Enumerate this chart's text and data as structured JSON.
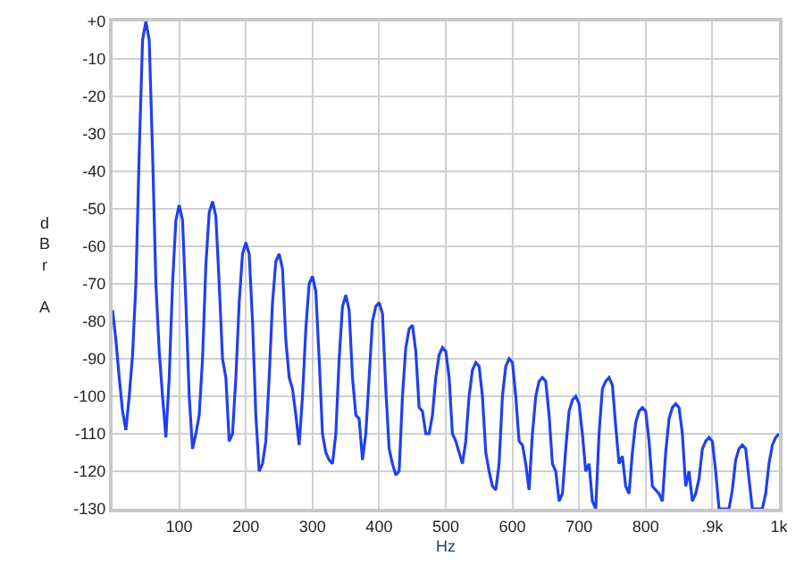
{
  "chart_data": {
    "type": "line",
    "xlabel": "Hz",
    "ylabel": "dBr A",
    "x": [
      0,
      5,
      10,
      15,
      20,
      25,
      30,
      35,
      40,
      45,
      50,
      55,
      60,
      65,
      70,
      75,
      80,
      85,
      90,
      95,
      100,
      105,
      110,
      115,
      120,
      125,
      130,
      135,
      140,
      145,
      150,
      155,
      160,
      165,
      170,
      175,
      180,
      185,
      190,
      195,
      200,
      205,
      210,
      215,
      220,
      225,
      230,
      235,
      240,
      245,
      250,
      255,
      260,
      265,
      270,
      275,
      280,
      285,
      290,
      295,
      300,
      305,
      310,
      315,
      320,
      325,
      330,
      335,
      340,
      345,
      350,
      355,
      360,
      365,
      370,
      375,
      380,
      385,
      390,
      395,
      400,
      405,
      410,
      415,
      420,
      425,
      430,
      435,
      440,
      445,
      450,
      455,
      460,
      465,
      470,
      475,
      480,
      485,
      490,
      495,
      500,
      505,
      510,
      515,
      520,
      525,
      530,
      535,
      540,
      545,
      550,
      555,
      560,
      565,
      570,
      575,
      580,
      585,
      590,
      595,
      600,
      605,
      610,
      615,
      620,
      625,
      630,
      635,
      640,
      645,
      650,
      655,
      660,
      665,
      670,
      675,
      680,
      685,
      690,
      695,
      700,
      705,
      710,
      715,
      720,
      725,
      730,
      735,
      740,
      745,
      750,
      755,
      760,
      765,
      770,
      775,
      780,
      785,
      790,
      795,
      800,
      805,
      810,
      815,
      820,
      825,
      830,
      835,
      840,
      845,
      850,
      855,
      860,
      865,
      870,
      875,
      880,
      885,
      890,
      895,
      900,
      905,
      910,
      915,
      920,
      925,
      930,
      935,
      940,
      945,
      950,
      955,
      960,
      965,
      970,
      975,
      980,
      985,
      990,
      995,
      1000
    ],
    "series": [
      {
        "color": "#2040f0",
        "values": [
          -77,
          -85,
          -95,
          -104,
          -109,
          -100,
          -89,
          -70,
          -35,
          -5,
          0,
          -5,
          -35,
          -70,
          -88,
          -100,
          -111,
          -95,
          -70,
          -53,
          -49,
          -53,
          -75,
          -100,
          -114,
          -110,
          -105,
          -90,
          -65,
          -51,
          -48,
          -52,
          -70,
          -90,
          -95,
          -112,
          -110,
          -95,
          -75,
          -62,
          -59,
          -62,
          -80,
          -105,
          -120,
          -118,
          -112,
          -95,
          -75,
          -64,
          -62,
          -66,
          -85,
          -95,
          -98,
          -105,
          -113,
          -100,
          -82,
          -70,
          -68,
          -72,
          -90,
          -110,
          -115,
          -117,
          -118,
          -110,
          -90,
          -76,
          -73,
          -77,
          -95,
          -105,
          -106,
          -117,
          -110,
          -95,
          -80,
          -76,
          -75,
          -78,
          -98,
          -114,
          -118,
          -121,
          -120,
          -100,
          -87,
          -82,
          -81,
          -88,
          -103,
          -104,
          -110,
          -110,
          -105,
          -95,
          -89,
          -87,
          -88,
          -95,
          -110,
          -112,
          -115,
          -118,
          -112,
          -100,
          -93,
          -91,
          -92,
          -100,
          -115,
          -120,
          -124,
          -125,
          -118,
          -100,
          -92,
          -90,
          -91,
          -100,
          -112,
          -113,
          -118,
          -125,
          -110,
          -100,
          -96,
          -95,
          -96,
          -105,
          -118,
          -120,
          -128,
          -126,
          -114,
          -104,
          -101,
          -100,
          -102,
          -110,
          -120,
          -118,
          -128,
          -130,
          -110,
          -98,
          -96,
          -95,
          -97,
          -108,
          -118,
          -116,
          -124,
          -126,
          -115,
          -107,
          -104,
          -103,
          -104,
          -112,
          -124,
          -125,
          -126,
          -128,
          -115,
          -106,
          -103,
          -102,
          -103,
          -110,
          -124,
          -120,
          -128,
          -126,
          -122,
          -114,
          -112,
          -111,
          -112,
          -120,
          -130,
          -130,
          -130,
          -130,
          -125,
          -117,
          -114,
          -113,
          -114,
          -122,
          -130,
          -130,
          -130,
          -130,
          -126,
          -118,
          -113,
          -111,
          -110
        ]
      }
    ],
    "xlim": [
      0,
      1000
    ],
    "xticks": [
      100,
      200,
      300,
      400,
      500,
      600,
      700,
      800,
      {
        "value": 900,
        "label": ".9k"
      },
      {
        "value": 1000,
        "label": "1k"
      }
    ],
    "ylim": [
      -130,
      0
    ],
    "yticks": [
      {
        "value": 0,
        "label": "+0"
      },
      -10,
      -20,
      -30,
      -40,
      -50,
      -60,
      -70,
      -80,
      -90,
      -100,
      -110,
      -120,
      -130
    ],
    "grid": true,
    "line_style": "solid"
  }
}
